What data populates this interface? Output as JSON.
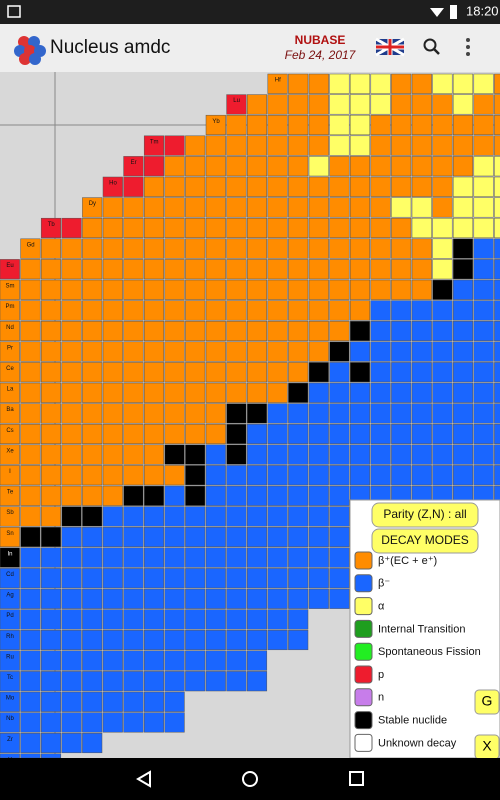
{
  "status_bar": {
    "time": "18:20"
  },
  "app_bar": {
    "title": "Nucleus amdc",
    "database": "NUBASE",
    "date": "Feb 24, 2017"
  },
  "chart": {
    "colors": {
      "o": "#ff8c00",
      "b": "#1a66ff",
      "y": "#ffff66",
      "k": "#000000",
      "r": "#ee1c2e"
    },
    "rows": [
      {
        "element": "Hf",
        "cells": ".............oooyyyooyyyo"
      },
      {
        "element": "Lu",
        "cells": "...........rooooyyyoooyoo"
      },
      {
        "element": "Yb",
        "cells": "..........ooooooyyooooooo"
      },
      {
        "element": "Tm",
        "cells": ".......rroooooooyyooooooo"
      },
      {
        "element": "Er",
        "cells": "......rroooooooyoooooooyy"
      },
      {
        "element": "Ho",
        "cells": ".....rroooooooooooooooyyy"
      },
      {
        "element": "Dy",
        "cells": "....oooooooooooooooyyoyyy"
      },
      {
        "element": "Tb",
        "cells": "..rrooooooooooooooooyyyyy"
      },
      {
        "element": "Gd",
        "cells": ".ooooooooooooooooooooykbb"
      },
      {
        "element": "Eu",
        "cells": "rooooooooooooooooooooykbb"
      },
      {
        "element": "Sm",
        "cells": "oooooooooooooooooooookbbb"
      },
      {
        "element": "Pm",
        "cells": "oooooooooooooooooobbbbbbb"
      },
      {
        "element": "Nd",
        "cells": "oooooooooooooooookbbbbbbb"
      },
      {
        "element": "Pr",
        "cells": "ooooooooooooooookbbbbbbbb"
      },
      {
        "element": "Ce",
        "cells": "oooooooooooooookbkbbbbbbb"
      },
      {
        "element": "La",
        "cells": "ooooooooooooookbbbbbbbbbb"
      },
      {
        "element": "Ba",
        "cells": "oooooooooookkbbbbbbbbbbbb"
      },
      {
        "element": "Cs",
        "cells": "oooooooooookbbbbbbbbbbbbb"
      },
      {
        "element": "Xe",
        "cells": "ooooooookkbkbbbbbbbbbbbbb"
      },
      {
        "element": "I",
        "cells": "oooooooookbbbbbbbbbbbbbbb"
      },
      {
        "element": "Te",
        "cells": "ooooookkbkbbbbbbbbbbbbbbb"
      },
      {
        "element": "Sb",
        "cells": "oookkbbbbbbbbbbbbbbbbbbbb"
      },
      {
        "element": "Sn",
        "cells": "okkbbbbbbbbbbbbbbbbb....."
      },
      {
        "element": "In",
        "cells": "kbbbbbbbbbbbbbbbbbb......"
      },
      {
        "element": "Cd",
        "cells": "bbbbbbbbbbbbbbbbb........"
      },
      {
        "element": "Ag",
        "cells": "bbbbbbbbbbbbbbbbb........"
      },
      {
        "element": "Pd",
        "cells": "bbbbbbbbbbbbbbb.........."
      },
      {
        "element": "Rh",
        "cells": "bbbbbbbbbbbbbbb.........."
      },
      {
        "element": "Ru",
        "cells": "bbbbbbbbbbbbb............"
      },
      {
        "element": "Tc",
        "cells": "bbbbbbbbbbbbb............"
      },
      {
        "element": "Mo",
        "cells": "bbbbbbbbb................"
      },
      {
        "element": "Nb",
        "cells": "bbbbbbbbb................"
      },
      {
        "element": "Zr",
        "cells": "bbbbb...................."
      },
      {
        "element": "Y",
        "cells": "bbb......................"
      }
    ]
  },
  "legend": {
    "parity_button": "Parity (Z,N) : all",
    "header": "DECAY MODES",
    "items": [
      {
        "label": "β⁺(EC + e⁺)",
        "color": "#ff8c00"
      },
      {
        "label": "β⁻",
        "color": "#1a66ff"
      },
      {
        "label": "α",
        "color": "#ffff66"
      },
      {
        "label": "Internal Transition",
        "color": "#1f9e1f"
      },
      {
        "label": "Spontaneous Fission",
        "color": "#22ee22"
      },
      {
        "label": "p",
        "color": "#ee1c2e"
      },
      {
        "label": "n",
        "color": "#c77dea"
      },
      {
        "label": "Stable nuclide",
        "color": "#000000"
      },
      {
        "label": "Unknown decay",
        "color": "#ffffff"
      }
    ]
  },
  "buttons": {
    "g": "G",
    "x": "X"
  }
}
